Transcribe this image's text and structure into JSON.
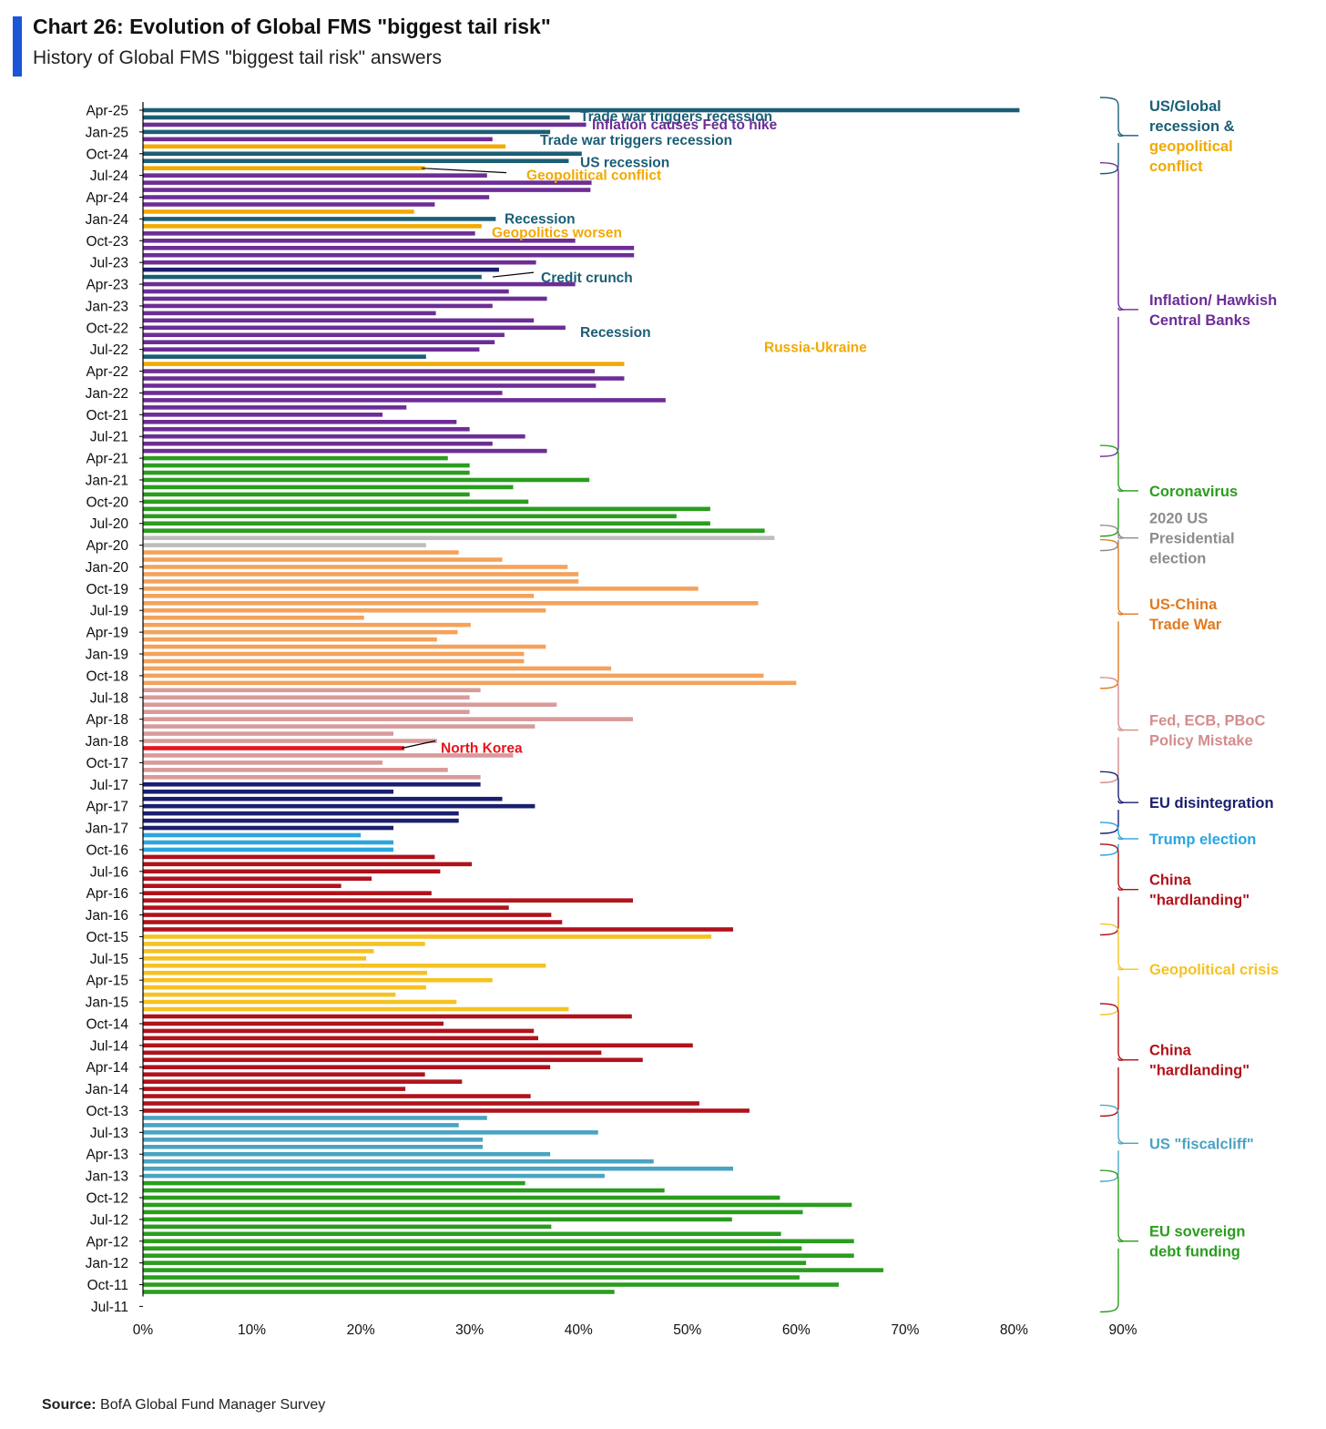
{
  "header": {
    "title": "Chart 26: Evolution of Global FMS \"biggest tail risk\"",
    "subtitle": "History of Global FMS \"biggest tail risk\" answers",
    "accent_color": "#1a56d6"
  },
  "source": {
    "label": "Source:",
    "text": "BofA Global Fund Manager Survey"
  },
  "chart_data": {
    "type": "bar",
    "orientation": "horizontal",
    "title": "Chart 26: Evolution of Global FMS \"biggest tail risk\"",
    "subtitle": "History of Global FMS \"biggest tail risk\" answers",
    "xlim": [
      0,
      90
    ],
    "x_ticks": [
      "0%",
      "10%",
      "20%",
      "30%",
      "40%",
      "50%",
      "60%",
      "70%",
      "80%",
      "90%"
    ],
    "y_tick_labels": [
      "Apr-25",
      "Jan-25",
      "Oct-24",
      "Jul-24",
      "Apr-24",
      "Jan-24",
      "Oct-23",
      "Jul-23",
      "Apr-23",
      "Jan-23",
      "Oct-22",
      "Jul-22",
      "Apr-22",
      "Jan-22",
      "Oct-21",
      "Jul-21",
      "Apr-21",
      "Jan-21",
      "Oct-20",
      "Jul-20",
      "Apr-20",
      "Jan-20",
      "Oct-19",
      "Jul-19",
      "Apr-19",
      "Jan-19",
      "Oct-18",
      "Jul-18",
      "Apr-18",
      "Jan-18",
      "Oct-17",
      "Jul-17",
      "Apr-17",
      "Jan-17",
      "Oct-16",
      "Jul-16",
      "Apr-16",
      "Jan-16",
      "Oct-15",
      "Jul-15",
      "Apr-15",
      "Jan-15",
      "Oct-14",
      "Jul-14",
      "Apr-14",
      "Jan-14",
      "Oct-13",
      "Jul-13",
      "Apr-13",
      "Jan-13",
      "Oct-12",
      "Jul-12",
      "Apr-12",
      "Jan-12",
      "Oct-11",
      "Jul-11"
    ],
    "grid": false,
    "bars_newest_first": [
      {
        "value": 80.5,
        "color": "#1b5e75"
      },
      {
        "value": 39.2,
        "color": "#1b5e75"
      },
      {
        "value": 40.7,
        "color": "#6d2d96"
      },
      {
        "value": 37.4,
        "color": "#1b5e75"
      },
      {
        "value": 32.1,
        "color": "#6d2d96"
      },
      {
        "value": 33.3,
        "color": "#f2a900"
      },
      {
        "value": 40.3,
        "color": "#1b5e75"
      },
      {
        "value": 39.1,
        "color": "#1b5e75"
      },
      {
        "value": 25.9,
        "color": "#f2a900"
      },
      {
        "value": 31.6,
        "color": "#6d2d96"
      },
      {
        "value": 41.2,
        "color": "#6d2d96"
      },
      {
        "value": 41.1,
        "color": "#6d2d96"
      },
      {
        "value": 31.8,
        "color": "#6d2d96"
      },
      {
        "value": 26.8,
        "color": "#6d2d96"
      },
      {
        "value": 24.9,
        "color": "#f2a900"
      },
      {
        "value": 32.4,
        "color": "#1b5e75"
      },
      {
        "value": 31.1,
        "color": "#f2a900"
      },
      {
        "value": 30.5,
        "color": "#6d2d96"
      },
      {
        "value": 39.7,
        "color": "#6d2d96"
      },
      {
        "value": 45.1,
        "color": "#6d2d96"
      },
      {
        "value": 45.1,
        "color": "#6d2d96"
      },
      {
        "value": 36.1,
        "color": "#6d2d96"
      },
      {
        "value": 32.7,
        "color": "#1a1f6e"
      },
      {
        "value": 31.1,
        "color": "#1b5e75"
      },
      {
        "value": 39.7,
        "color": "#6d2d96"
      },
      {
        "value": 33.6,
        "color": "#6d2d96"
      },
      {
        "value": 37.1,
        "color": "#6d2d96"
      },
      {
        "value": 32.1,
        "color": "#6d2d96"
      },
      {
        "value": 26.9,
        "color": "#6d2d96"
      },
      {
        "value": 35.9,
        "color": "#6d2d96"
      },
      {
        "value": 38.8,
        "color": "#6d2d96"
      },
      {
        "value": 33.2,
        "color": "#6d2d96"
      },
      {
        "value": 32.3,
        "color": "#6d2d96"
      },
      {
        "value": 30.9,
        "color": "#6d2d96"
      },
      {
        "value": 26.0,
        "color": "#1b5e75"
      },
      {
        "value": 44.2,
        "color": "#f2a900"
      },
      {
        "value": 41.5,
        "color": "#6d2d96"
      },
      {
        "value": 44.2,
        "color": "#6d2d96"
      },
      {
        "value": 41.6,
        "color": "#6d2d96"
      },
      {
        "value": 33.0,
        "color": "#6d2d96"
      },
      {
        "value": 48.0,
        "color": "#6d2d96"
      },
      {
        "value": 24.2,
        "color": "#6d2d96"
      },
      {
        "value": 22.0,
        "color": "#6d2d96"
      },
      {
        "value": 28.8,
        "color": "#6d2d96"
      },
      {
        "value": 30.0,
        "color": "#6d2d96"
      },
      {
        "value": 35.1,
        "color": "#6d2d96"
      },
      {
        "value": 32.1,
        "color": "#6d2d96"
      },
      {
        "value": 37.1,
        "color": "#6d2d96"
      },
      {
        "value": 28.0,
        "color": "#2a9d1e"
      },
      {
        "value": 30.0,
        "color": "#2a9d1e"
      },
      {
        "value": 30.0,
        "color": "#2a9d1e"
      },
      {
        "value": 41.0,
        "color": "#2a9d1e"
      },
      {
        "value": 34.0,
        "color": "#2a9d1e"
      },
      {
        "value": 30.0,
        "color": "#2a9d1e"
      },
      {
        "value": 35.4,
        "color": "#2a9d1e"
      },
      {
        "value": 52.1,
        "color": "#2a9d1e"
      },
      {
        "value": 49.0,
        "color": "#2a9d1e"
      },
      {
        "value": 52.1,
        "color": "#2a9d1e"
      },
      {
        "value": 57.1,
        "color": "#2a9d1e"
      },
      {
        "value": 58.0,
        "color": "#bdbdbd"
      },
      {
        "value": 26.0,
        "color": "#bdbdbd"
      },
      {
        "value": 29.0,
        "color": "#f4a25b"
      },
      {
        "value": 33.0,
        "color": "#f4a25b"
      },
      {
        "value": 39.0,
        "color": "#f4a25b"
      },
      {
        "value": 40.0,
        "color": "#f4a25b"
      },
      {
        "value": 40.0,
        "color": "#f4a25b"
      },
      {
        "value": 51.0,
        "color": "#f4a25b"
      },
      {
        "value": 35.9,
        "color": "#f4a25b"
      },
      {
        "value": 56.5,
        "color": "#f4a25b"
      },
      {
        "value": 37.0,
        "color": "#f4a25b"
      },
      {
        "value": 20.3,
        "color": "#f4a25b"
      },
      {
        "value": 30.1,
        "color": "#f4a25b"
      },
      {
        "value": 28.9,
        "color": "#f4a25b"
      },
      {
        "value": 27.0,
        "color": "#f4a25b"
      },
      {
        "value": 37.0,
        "color": "#f4a25b"
      },
      {
        "value": 35.0,
        "color": "#f4a25b"
      },
      {
        "value": 35.0,
        "color": "#f4a25b"
      },
      {
        "value": 43.0,
        "color": "#f4a25b"
      },
      {
        "value": 57.0,
        "color": "#f4a25b"
      },
      {
        "value": 60.0,
        "color": "#f4a25b"
      },
      {
        "value": 31.0,
        "color": "#d99a9a"
      },
      {
        "value": 30.0,
        "color": "#d99a9a"
      },
      {
        "value": 38.0,
        "color": "#d99a9a"
      },
      {
        "value": 30.0,
        "color": "#d99a9a"
      },
      {
        "value": 45.0,
        "color": "#d99a9a"
      },
      {
        "value": 36.0,
        "color": "#d99a9a"
      },
      {
        "value": 23.0,
        "color": "#d99a9a"
      },
      {
        "value": 27.0,
        "color": "#d99a9a"
      },
      {
        "value": 24.0,
        "color": "#e8141b"
      },
      {
        "value": 34.0,
        "color": "#d99a9a"
      },
      {
        "value": 22.0,
        "color": "#d99a9a"
      },
      {
        "value": 28.0,
        "color": "#d99a9a"
      },
      {
        "value": 31.0,
        "color": "#d99a9a"
      },
      {
        "value": 31.0,
        "color": "#1a1f6e"
      },
      {
        "value": 23.0,
        "color": "#1a1f6e"
      },
      {
        "value": 33.0,
        "color": "#1a1f6e"
      },
      {
        "value": 36.0,
        "color": "#1a1f6e"
      },
      {
        "value": 29.0,
        "color": "#1a1f6e"
      },
      {
        "value": 29.0,
        "color": "#1a1f6e"
      },
      {
        "value": 23.0,
        "color": "#1a1f6e"
      },
      {
        "value": 20.0,
        "color": "#2aa6e0"
      },
      {
        "value": 23.0,
        "color": "#2aa6e0"
      },
      {
        "value": 23.0,
        "color": "#2aa6e0"
      },
      {
        "value": 26.8,
        "color": "#b0121b"
      },
      {
        "value": 30.2,
        "color": "#b0121b"
      },
      {
        "value": 27.3,
        "color": "#b0121b"
      },
      {
        "value": 21.0,
        "color": "#b0121b"
      },
      {
        "value": 18.2,
        "color": "#b0121b"
      },
      {
        "value": 26.5,
        "color": "#b0121b"
      },
      {
        "value": 45.0,
        "color": "#b0121b"
      },
      {
        "value": 33.6,
        "color": "#b0121b"
      },
      {
        "value": 37.5,
        "color": "#b0121b"
      },
      {
        "value": 38.5,
        "color": "#b0121b"
      },
      {
        "value": 54.2,
        "color": "#b0121b"
      },
      {
        "value": 52.2,
        "color": "#f5c223"
      },
      {
        "value": 25.9,
        "color": "#f5c223"
      },
      {
        "value": 21.2,
        "color": "#f5c223"
      },
      {
        "value": 20.5,
        "color": "#f5c223"
      },
      {
        "value": 37.0,
        "color": "#f5c223"
      },
      {
        "value": 26.1,
        "color": "#f5c223"
      },
      {
        "value": 32.1,
        "color": "#f5c223"
      },
      {
        "value": 26.0,
        "color": "#f5c223"
      },
      {
        "value": 23.2,
        "color": "#f5c223"
      },
      {
        "value": 28.8,
        "color": "#f5c223"
      },
      {
        "value": 39.1,
        "color": "#f5c223"
      },
      {
        "value": 44.9,
        "color": "#b0121b"
      },
      {
        "value": 27.6,
        "color": "#b0121b"
      },
      {
        "value": 35.9,
        "color": "#b0121b"
      },
      {
        "value": 36.3,
        "color": "#b0121b"
      },
      {
        "value": 50.5,
        "color": "#b0121b"
      },
      {
        "value": 42.1,
        "color": "#b0121b"
      },
      {
        "value": 45.9,
        "color": "#b0121b"
      },
      {
        "value": 37.4,
        "color": "#b0121b"
      },
      {
        "value": 25.9,
        "color": "#b0121b"
      },
      {
        "value": 29.3,
        "color": "#b0121b"
      },
      {
        "value": 24.1,
        "color": "#b0121b"
      },
      {
        "value": 35.6,
        "color": "#b0121b"
      },
      {
        "value": 51.1,
        "color": "#b0121b"
      },
      {
        "value": 55.7,
        "color": "#b0121b"
      },
      {
        "value": 31.6,
        "color": "#4aa3c2"
      },
      {
        "value": 29.0,
        "color": "#4aa3c2"
      },
      {
        "value": 41.8,
        "color": "#4aa3c2"
      },
      {
        "value": 31.2,
        "color": "#4aa3c2"
      },
      {
        "value": 31.2,
        "color": "#4aa3c2"
      },
      {
        "value": 37.4,
        "color": "#4aa3c2"
      },
      {
        "value": 46.9,
        "color": "#4aa3c2"
      },
      {
        "value": 54.2,
        "color": "#4aa3c2"
      },
      {
        "value": 42.4,
        "color": "#4aa3c2"
      },
      {
        "value": 35.1,
        "color": "#2a9d1e"
      },
      {
        "value": 47.9,
        "color": "#2a9d1e"
      },
      {
        "value": 58.5,
        "color": "#2a9d1e"
      },
      {
        "value": 65.1,
        "color": "#2a9d1e"
      },
      {
        "value": 60.6,
        "color": "#2a9d1e"
      },
      {
        "value": 54.1,
        "color": "#2a9d1e"
      },
      {
        "value": 37.5,
        "color": "#2a9d1e"
      },
      {
        "value": 58.6,
        "color": "#2a9d1e"
      },
      {
        "value": 65.3,
        "color": "#2a9d1e"
      },
      {
        "value": 60.5,
        "color": "#2a9d1e"
      },
      {
        "value": 65.3,
        "color": "#2a9d1e"
      },
      {
        "value": 60.9,
        "color": "#2a9d1e"
      },
      {
        "value": 68.0,
        "color": "#2a9d1e"
      },
      {
        "value": 60.3,
        "color": "#2a9d1e"
      },
      {
        "value": 63.9,
        "color": "#2a9d1e"
      },
      {
        "value": 43.3,
        "color": "#2a9d1e"
      }
    ],
    "annotations": [
      {
        "text": "Trade war triggers recession",
        "color": "#1b5e75",
        "bar_index": 1
      },
      {
        "text": "Inflation causes Fed to hike",
        "color": "#6d2d96",
        "bar_index": 2
      },
      {
        "text": "Trade war triggers recession",
        "color": "#1b5e75",
        "bar_index": 4
      },
      {
        "text": "US recession",
        "color": "#1b5e75",
        "bar_index": 7
      },
      {
        "text": "Geopolitical conflict",
        "color": "#f2a900",
        "bar_index": 9
      },
      {
        "text": "Recession",
        "color": "#1b5e75",
        "bar_index": 15
      },
      {
        "text": "Geopolitics worsen",
        "color": "#f2a900",
        "bar_index": 17
      },
      {
        "text": "Credit crunch",
        "color": "#1b5e75",
        "bar_index": 23
      },
      {
        "text": "Recession",
        "color": "#1b5e75",
        "bar_index": 30
      },
      {
        "text": "Russia-Ukraine",
        "color": "#f2a900",
        "bar_index": 32
      },
      {
        "text": "North Korea",
        "color": "#e8141b",
        "bar_index": 88
      }
    ],
    "groups": [
      {
        "lines": [
          "US/Global",
          "recession &"
        ],
        "lines2": [
          "geopolitical",
          "conflict"
        ],
        "color": "#1b5e75",
        "color2": "#f2a900",
        "first_bar": 0,
        "last_bar": 8
      },
      {
        "lines": [
          "Inflation/ Hawkish",
          "Central Banks"
        ],
        "color": "#6d2d96",
        "first_bar": 9,
        "last_bar": 47
      },
      {
        "lines": [
          "Coronavirus"
        ],
        "color": "#2a9d1e",
        "first_bar": 48,
        "last_bar": 58
      },
      {
        "lines": [
          "2020 US",
          "Presidential",
          "election"
        ],
        "color": "#8c8c8c",
        "first_bar": 59,
        "last_bar": 60
      },
      {
        "lines": [
          "US-China",
          "Trade War"
        ],
        "color": "#e07a1f",
        "first_bar": 61,
        "last_bar": 79
      },
      {
        "lines": [
          "Fed, ECB, PBoC",
          "Policy Mistake"
        ],
        "color": "#d48c8c",
        "first_bar": 80,
        "last_bar": 92
      },
      {
        "lines": [
          "EU disintegration"
        ],
        "color": "#1a1f6e",
        "first_bar": 93,
        "last_bar": 99
      },
      {
        "lines": [
          "Trump election"
        ],
        "color": "#2aa6e0",
        "first_bar": 100,
        "last_bar": 102
      },
      {
        "lines": [
          "China",
          "\"hardlanding\""
        ],
        "color": "#b0121b",
        "first_bar": 103,
        "last_bar": 113
      },
      {
        "lines": [
          "Geopolitical crisis"
        ],
        "color": "#f5c223",
        "first_bar": 114,
        "last_bar": 124
      },
      {
        "lines": [
          "China",
          "\"hardlanding\""
        ],
        "color": "#b0121b",
        "first_bar": 125,
        "last_bar": 138
      },
      {
        "lines": [
          "US \"fiscalcliff\""
        ],
        "color": "#4aa3c2",
        "first_bar": 139,
        "last_bar": 147
      },
      {
        "lines": [
          "EU sovereign",
          "debt funding"
        ],
        "color": "#2a9d1e",
        "first_bar": 148,
        "last_bar": 165
      }
    ]
  }
}
